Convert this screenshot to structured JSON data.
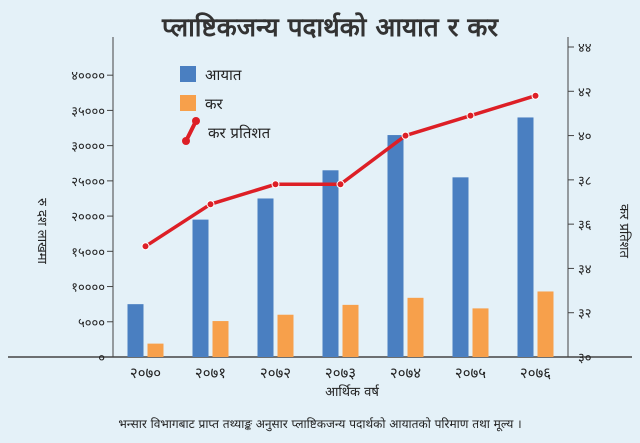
{
  "chart_data": {
    "type": "bar",
    "title": "प्लाष्टिकजन्य पदार्थको आयात र कर",
    "xlabel": "आर्थिक वर्ष",
    "ylabel": "रु दश लाखमा",
    "y2label": "कर प्रतिशत",
    "categories": [
      "२०७०",
      "२०७१",
      "२०७२",
      "२०७३",
      "२०७४",
      "२०७५",
      "२०७६"
    ],
    "ylim": [
      0,
      44000
    ],
    "yticks": [
      0,
      5000,
      10000,
      15000,
      20000,
      25000,
      30000,
      35000,
      40000
    ],
    "ytick_labels": [
      "०",
      "५०००",
      "१००००",
      "१५०००",
      "२००००",
      "२५०००",
      "३००००",
      "३५०००",
      "४००००"
    ],
    "y2lim": [
      30,
      44
    ],
    "y2ticks": [
      30,
      32,
      34,
      36,
      38,
      40,
      42,
      44
    ],
    "y2tick_labels": [
      "३०",
      "३२",
      "३४",
      "३६",
      "३८",
      "४०",
      "४२",
      "४४"
    ],
    "series": [
      {
        "name": "आयात",
        "type": "bar",
        "color": "#4a7fc1",
        "values": [
          7500,
          19500,
          22500,
          26500,
          31500,
          25500,
          34000
        ]
      },
      {
        "name": "कर",
        "type": "bar",
        "color": "#f7a04b",
        "values": [
          1900,
          5100,
          6000,
          7400,
          8400,
          6900,
          9300
        ]
      },
      {
        "name": "कर प्रतिशत",
        "type": "line",
        "axis": "right",
        "color": "#dd1f26",
        "values": [
          35.0,
          36.9,
          37.8,
          37.8,
          40.0,
          40.9,
          41.8
        ]
      }
    ],
    "grid": false,
    "legend_position": "top-left"
  },
  "footnote": "भन्सार विभागबाट प्राप्त तथ्याङ्क अनुसार प्लाष्टिकजन्य पदार्थको आयातको परिमाण तथा मूल्य ।"
}
